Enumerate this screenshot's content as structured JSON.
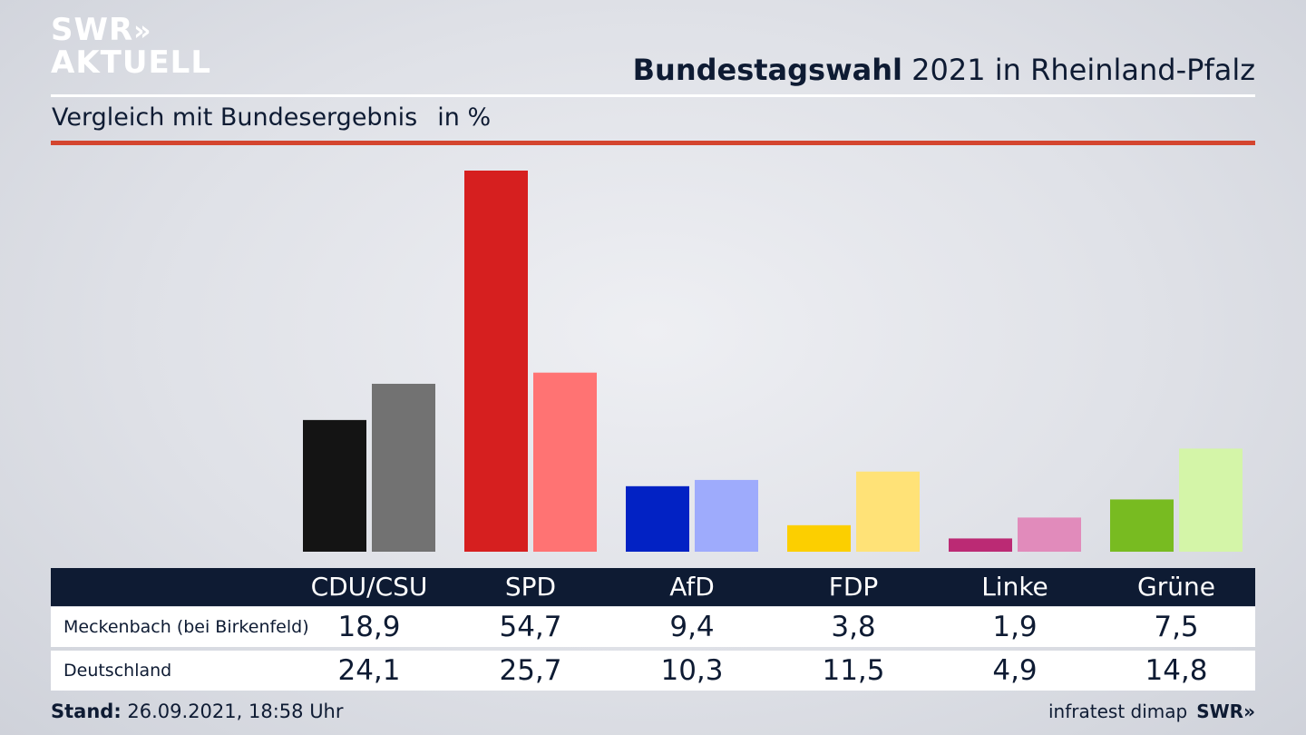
{
  "logo": {
    "line1": "SWR",
    "chevrons": "»",
    "line2": "AKTUELL"
  },
  "title": {
    "bold": "Bundestagswahl",
    "rest": "2021 in Rheinland-Pfalz"
  },
  "subtitle": {
    "text": "Vergleich mit Bundesergebnis",
    "unit": "in %"
  },
  "table": {
    "rows": [
      {
        "label": "Meckenbach (bei Birkenfeld)",
        "values": [
          "18,9",
          "54,7",
          "9,4",
          "3,8",
          "1,9",
          "7,5"
        ]
      },
      {
        "label": "Deutschland",
        "values": [
          "24,1",
          "25,7",
          "10,3",
          "11,5",
          "4,9",
          "14,8"
        ]
      }
    ]
  },
  "footer": {
    "stand_label": "Stand:",
    "stand_value": "26.09.2021, 18:58 Uhr",
    "source": "infratest dimap",
    "brand": "SWR»"
  },
  "colors": {
    "local": [
      "#141414",
      "#d61f1f",
      "#0222c4",
      "#fccf00",
      "#bb2a74",
      "#78bb21"
    ],
    "national": [
      "#727272",
      "#ff7373",
      "#9eabfc",
      "#ffe277",
      "#e18bbb",
      "#d4f5a8"
    ],
    "header_bg": "#0e1b33",
    "accent_rule": "#d4452f"
  },
  "chart_data": {
    "type": "bar",
    "categories": [
      "CDU/CSU",
      "SPD",
      "AfD",
      "FDP",
      "Linke",
      "Grüne"
    ],
    "series": [
      {
        "name": "Meckenbach (bei Birkenfeld)",
        "values": [
          18.9,
          54.7,
          9.4,
          3.8,
          1.9,
          7.5
        ]
      },
      {
        "name": "Deutschland",
        "values": [
          24.1,
          25.7,
          10.3,
          11.5,
          4.9,
          14.8
        ]
      }
    ],
    "title": "Bundestagswahl 2021 in Rheinland-Pfalz",
    "subtitle": "Vergleich mit Bundesergebnis",
    "ylabel": "in %",
    "ylim": [
      0,
      55
    ],
    "grid": false,
    "legend": "table below chart"
  }
}
